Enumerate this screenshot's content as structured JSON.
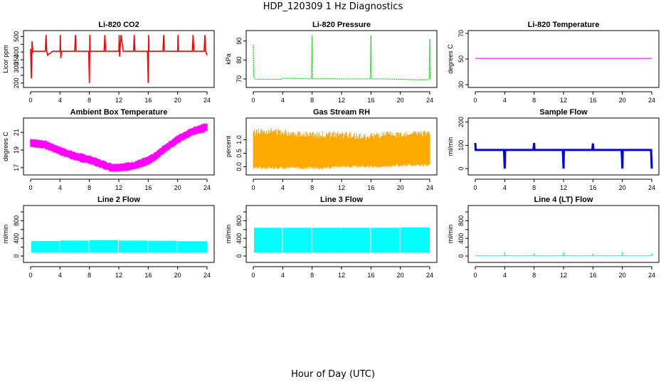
{
  "figure": {
    "title": "HDP_120309  1 Hz Diagnostics",
    "xlabel": "Hour of Day (UTC)"
  },
  "chart_data": [
    {
      "type": "line",
      "title": "Li-820 CO2",
      "ylabel": "Licor ppm",
      "color": "#ff0000",
      "xlim": [
        0,
        24
      ],
      "ylim": [
        190,
        520
      ],
      "x_ticks": [
        0,
        4,
        8,
        12,
        16,
        20,
        24
      ],
      "y_ticks": [
        200,
        250,
        300,
        350,
        400,
        450,
        500
      ],
      "y_tick_labels": [
        "200",
        "",
        "300",
        "350",
        "400",
        "",
        "500"
      ],
      "series": [
        {
          "x": [
            0,
            0.1,
            0.2,
            0.3,
            0.5,
            1.0,
            1.5,
            2.0,
            2.1,
            2.2,
            2.3,
            3.0,
            4.0,
            4.05,
            4.1,
            4.2,
            5.0,
            6.0,
            6.1,
            6.2,
            7.0,
            7.9,
            8.0,
            8.05,
            8.1,
            8.5,
            9.0,
            10.0,
            10.1,
            10.2,
            11.0,
            11.5,
            12.0,
            12.05,
            12.1,
            12.3,
            12.6,
            13.0,
            14.0,
            14.1,
            14.2,
            15.0,
            15.9,
            16.0,
            16.05,
            16.1,
            17.0,
            18.0,
            18.1,
            18.2,
            19.0,
            20.0,
            20.05,
            20.1,
            21.0,
            22.0,
            22.1,
            22.2,
            23.0,
            23.6,
            23.7,
            23.8,
            24.0
          ],
          "y": [
            420,
            230,
            470,
            400,
            405,
            405,
            405,
            405,
            510,
            405,
            380,
            405,
            405,
            510,
            360,
            405,
            405,
            405,
            510,
            405,
            405,
            405,
            200,
            510,
            405,
            405,
            405,
            405,
            510,
            405,
            405,
            405,
            405,
            510,
            370,
            510,
            405,
            405,
            405,
            510,
            405,
            405,
            405,
            200,
            510,
            405,
            405,
            405,
            510,
            405,
            405,
            405,
            510,
            405,
            405,
            405,
            510,
            405,
            405,
            405,
            510,
            405,
            380
          ]
        }
      ]
    },
    {
      "type": "line",
      "title": "Li-820 Pressure",
      "ylabel": "kPa",
      "color": "#00cc00",
      "xlim": [
        0,
        24
      ],
      "ylim": [
        67,
        94
      ],
      "x_ticks": [
        0,
        4,
        8,
        12,
        16,
        20,
        24
      ],
      "y_ticks": [
        70,
        80,
        90
      ],
      "series": [
        {
          "x": [
            0,
            0.05,
            0.1,
            0.2,
            0.5,
            2.0,
            3.8,
            4.0,
            6.0,
            7.9,
            8.0,
            8.05,
            10.0,
            12.0,
            14.0,
            15.9,
            16.0,
            16.05,
            18.0,
            20.0,
            22.0,
            23.9,
            24.0,
            24.05
          ],
          "y": [
            88,
            72,
            70.5,
            70.0,
            69.8,
            69.8,
            69.8,
            70.3,
            70.3,
            70.0,
            93,
            70.0,
            70.1,
            70.0,
            70.0,
            70.0,
            93,
            70.0,
            70.0,
            69.8,
            69.6,
            69.6,
            91,
            70
          ]
        }
      ]
    },
    {
      "type": "line",
      "title": "Li-820 Temperature",
      "ylabel": "degrees C",
      "color": "#ff00ff",
      "xlim": [
        0,
        24
      ],
      "ylim": [
        30,
        70
      ],
      "x_ticks": [
        0,
        4,
        8,
        12,
        16,
        20,
        24
      ],
      "y_ticks": [
        30,
        50,
        70
      ],
      "series": [
        {
          "x": [
            0,
            24
          ],
          "y": [
            50.5,
            50.5
          ]
        }
      ]
    },
    {
      "type": "line",
      "title": "Ambient Box Temperature",
      "ylabel": "degrees C",
      "color": "#ff00ff",
      "xlim": [
        0,
        24
      ],
      "ylim": [
        16.5,
        22.3
      ],
      "x_ticks": [
        0,
        4,
        8,
        12,
        16,
        20,
        24
      ],
      "y_ticks": [
        17,
        19,
        21
      ],
      "band": {
        "x": [
          0,
          2,
          4,
          6,
          8,
          10,
          11,
          12,
          14,
          16,
          17,
          18,
          20,
          22,
          24
        ],
        "y": [
          19.8,
          19.6,
          18.9,
          18.3,
          17.9,
          17.3,
          17.0,
          17.0,
          17.2,
          17.8,
          18.3,
          19.0,
          20.2,
          21.1,
          21.6
        ],
        "spread": 0.45
      }
    },
    {
      "type": "scatter",
      "title": "Gas Stream RH",
      "ylabel": "percent",
      "color": "#ffaa00",
      "color_dark": "#b35a00",
      "xlim": [
        0,
        24
      ],
      "ylim": [
        -0.2,
        1.7
      ],
      "x_ticks": [
        0,
        4,
        8,
        12,
        16,
        20,
        24
      ],
      "y_ticks": [
        0.0,
        0.5,
        1.0
      ],
      "y_tick_labels": [
        "0.0",
        "0.5",
        "1.0"
      ],
      "band": {
        "x": [
          0,
          2,
          4,
          6,
          8,
          10,
          12,
          14,
          16,
          18,
          20,
          22,
          24
        ],
        "y_low": [
          0.0,
          0.0,
          0.0,
          0.0,
          0.0,
          0.0,
          0.05,
          0.05,
          0.05,
          0.05,
          0.1,
          0.1,
          0.1
        ],
        "y_high": [
          1.15,
          1.2,
          1.15,
          1.1,
          1.05,
          1.05,
          1.05,
          1.0,
          1.0,
          1.05,
          1.05,
          1.1,
          1.1
        ]
      }
    },
    {
      "type": "line",
      "title": "Sample Flow",
      "ylabel": "ml/min",
      "color": "#0000ee",
      "xlim": [
        0,
        24
      ],
      "ylim": [
        -15,
        205
      ],
      "x_ticks": [
        0,
        4,
        8,
        12,
        16,
        20,
        24
      ],
      "y_ticks": [
        0,
        100,
        200
      ],
      "series": [
        {
          "x": [
            0,
            0.05,
            0.1,
            3.9,
            4.0,
            4.05,
            7.9,
            8.0,
            8.05,
            11.9,
            12.0,
            12.05,
            15.9,
            16.0,
            16.05,
            19.9,
            20.0,
            20.05,
            23.9,
            24.0
          ],
          "y": [
            110,
            80,
            80,
            80,
            0,
            80,
            80,
            110,
            80,
            80,
            0,
            80,
            80,
            108,
            80,
            80,
            0,
            80,
            80,
            0
          ]
        }
      ]
    },
    {
      "type": "area",
      "title": "Line 2 Flow",
      "ylabel": "ml/min",
      "color": "#00ffff",
      "xlim": [
        0,
        24
      ],
      "ylim": [
        -80,
        1080
      ],
      "x_ticks": [
        0,
        4,
        8,
        12,
        16,
        20,
        24
      ],
      "y_ticks": [
        0,
        200,
        400,
        600,
        800,
        1000
      ],
      "y_tick_labels": [
        "0",
        "",
        "400",
        "",
        "800",
        ""
      ],
      "blocks": [
        {
          "x0": 0.1,
          "x1": 3.9,
          "y_low": 80,
          "y_high": 340
        },
        {
          "x0": 4.0,
          "x1": 7.9,
          "y_low": 80,
          "y_high": 350
        },
        {
          "x0": 8.0,
          "x1": 11.9,
          "y_low": 80,
          "y_high": 360
        },
        {
          "x0": 12.0,
          "x1": 15.9,
          "y_low": 80,
          "y_high": 350
        },
        {
          "x0": 16.0,
          "x1": 19.9,
          "y_low": 80,
          "y_high": 345
        },
        {
          "x0": 20.0,
          "x1": 24.0,
          "y_low": 80,
          "y_high": 335
        }
      ]
    },
    {
      "type": "area",
      "title": "Line 3 Flow",
      "ylabel": "ml/min",
      "color": "#00ffff",
      "xlim": [
        0,
        24
      ],
      "ylim": [
        -80,
        1080
      ],
      "x_ticks": [
        0,
        4,
        8,
        12,
        16,
        20,
        24
      ],
      "y_ticks": [
        0,
        200,
        400,
        600,
        800,
        1000
      ],
      "y_tick_labels": [
        "0",
        "",
        "400",
        "",
        "800",
        ""
      ],
      "blocks": [
        {
          "x0": 0.1,
          "x1": 3.9,
          "y_low": 80,
          "y_high": 640
        },
        {
          "x0": 4.0,
          "x1": 7.9,
          "y_low": 80,
          "y_high": 640
        },
        {
          "x0": 8.0,
          "x1": 11.9,
          "y_low": 80,
          "y_high": 640
        },
        {
          "x0": 12.0,
          "x1": 15.9,
          "y_low": 80,
          "y_high": 640
        },
        {
          "x0": 16.0,
          "x1": 19.9,
          "y_low": 80,
          "y_high": 640
        },
        {
          "x0": 20.0,
          "x1": 24.0,
          "y_low": 80,
          "y_high": 650
        }
      ]
    },
    {
      "type": "line",
      "title": "Line 4 (LT) Flow",
      "ylabel": "ml/min",
      "color": "#00ffff",
      "xlim": [
        0,
        24
      ],
      "ylim": [
        -80,
        1080
      ],
      "x_ticks": [
        0,
        4,
        8,
        12,
        16,
        20,
        24
      ],
      "y_ticks": [
        0,
        200,
        400,
        600,
        800,
        1000
      ],
      "y_tick_labels": [
        "0",
        "",
        "400",
        "",
        "800",
        ""
      ],
      "series": [
        {
          "x": [
            0,
            3.95,
            4.0,
            4.05,
            7.95,
            8.0,
            8.05,
            11.95,
            12.0,
            12.05,
            15.95,
            16.0,
            16.05,
            19.95,
            20.0,
            20.05,
            23.95,
            24.0,
            24.05
          ],
          "y": [
            5,
            5,
            90,
            5,
            5,
            60,
            5,
            5,
            90,
            5,
            5,
            60,
            5,
            5,
            90,
            5,
            5,
            60,
            5
          ]
        }
      ]
    }
  ]
}
